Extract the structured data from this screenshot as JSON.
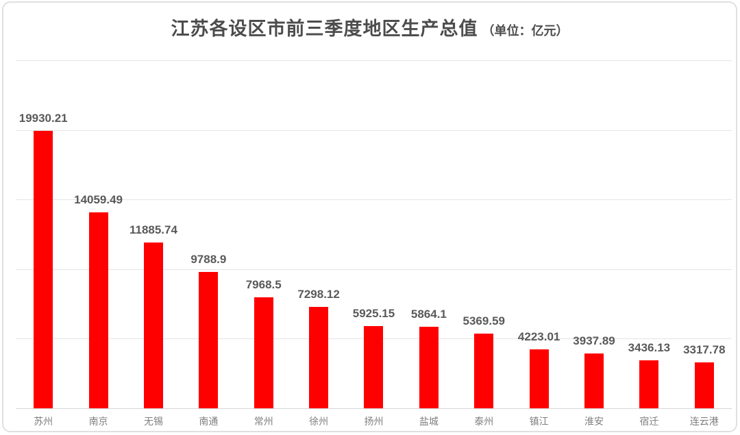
{
  "chart_data": {
    "type": "bar",
    "title": "江苏各设区市前三季度地区生产总值",
    "subtitle": "（单位：亿元）",
    "categories": [
      "苏州",
      "南京",
      "无锡",
      "南通",
      "常州",
      "徐州",
      "扬州",
      "盐城",
      "泰州",
      "镇江",
      "淮安",
      "宿迁",
      "连云港"
    ],
    "values": [
      19930.21,
      14059.49,
      11885.74,
      9788.9,
      7968.5,
      7298.12,
      5925.15,
      5864.1,
      5369.59,
      4223.01,
      3937.89,
      3436.13,
      3317.78
    ],
    "value_labels": [
      "19930.21",
      "14059.49",
      "11885.74",
      "9788.9",
      "7968.5",
      "7298.12",
      "5925.15",
      "5864.1",
      "5369.59",
      "4223.01",
      "3937.89",
      "3436.13",
      "3317.78"
    ],
    "xlabel": "",
    "ylabel": "",
    "ylim": [
      0,
      25000
    ],
    "grid_step": 5000,
    "grid": true,
    "legend_position": "none",
    "bar_color": "#ff0000",
    "value_label_color": "#595959",
    "category_label_color": "#7f7f7f",
    "grid_color": "#e4e4e4",
    "title_color": "#4c4c4c"
  }
}
